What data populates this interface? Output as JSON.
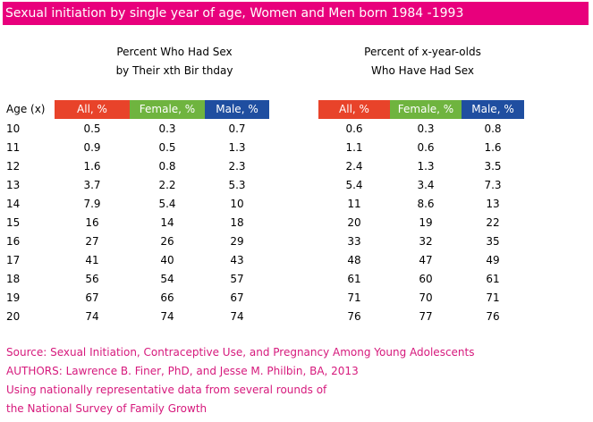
{
  "title": "Sexual initiation by single year of age, Women and Men born 1984 -1993",
  "left_group": {
    "heading_line1": "Percent Who Had Sex",
    "heading_line2": "by Their xth Bir thday"
  },
  "right_group": {
    "heading_line1": "Percent of x-year-olds",
    "heading_line2": "Who Have Had Sex"
  },
  "age_header": "Age (x)",
  "column_headers": {
    "all": "All, %",
    "female": "Female, %",
    "male": "Male, %"
  },
  "colors": {
    "title_bg": "#e8007c",
    "all": "#e8432a",
    "female": "#6fb43f",
    "male": "#1f4ea0",
    "source_text": "#d6197c"
  },
  "rows": [
    {
      "age": "10",
      "left": [
        "0.5",
        "0.3",
        "0.7"
      ],
      "right": [
        "0.6",
        "0.3",
        "0.8"
      ]
    },
    {
      "age": "11",
      "left": [
        "0.9",
        "0.5",
        "1.3"
      ],
      "right": [
        "1.1",
        "0.6",
        "1.6"
      ]
    },
    {
      "age": "12",
      "left": [
        "1.6",
        "0.8",
        "2.3"
      ],
      "right": [
        "2.4",
        "1.3",
        "3.5"
      ]
    },
    {
      "age": "13",
      "left": [
        "3.7",
        "2.2",
        "5.3"
      ],
      "right": [
        "5.4",
        "3.4",
        "7.3"
      ]
    },
    {
      "age": "14",
      "left": [
        "7.9",
        "5.4",
        "10"
      ],
      "right": [
        "11",
        "8.6",
        "13"
      ]
    },
    {
      "age": "15",
      "left": [
        "16",
        "14",
        "18"
      ],
      "right": [
        "20",
        "19",
        "22"
      ]
    },
    {
      "age": "16",
      "left": [
        "27",
        "26",
        "29"
      ],
      "right": [
        "33",
        "32",
        "35"
      ]
    },
    {
      "age": "17",
      "left": [
        "41",
        "40",
        "43"
      ],
      "right": [
        "48",
        "47",
        "49"
      ]
    },
    {
      "age": "18",
      "left": [
        "56",
        "54",
        "57"
      ],
      "right": [
        "61",
        "60",
        "61"
      ]
    },
    {
      "age": "19",
      "left": [
        "67",
        "66",
        "67"
      ],
      "right": [
        "71",
        "70",
        "71"
      ]
    },
    {
      "age": "20",
      "left": [
        "74",
        "74",
        "74"
      ],
      "right": [
        "76",
        "77",
        "76"
      ]
    }
  ],
  "source": {
    "line1": "Source: Sexual Initiation, Contraceptive Use, and Pregnancy Among Young Adolescents",
    "line2": "AUTHORS: Lawrence B. Finer, PhD, and Jesse M. Philbin, BA, 2013",
    "line3": "Using nationally representative data from several rounds of",
    "line4": "the National Survey of Family Growth"
  }
}
